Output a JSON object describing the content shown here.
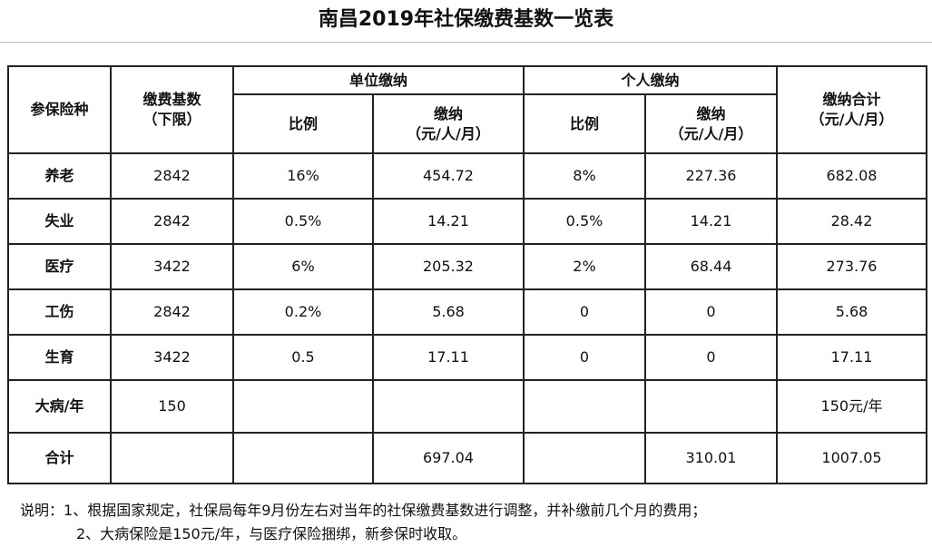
{
  "title": "南昌2019年社保缴费基数一览表",
  "table": {
    "header": {
      "row1": [
        [
          "参保险种"
        ],
        [
          "缴费基数",
          "（下限）"
        ],
        [
          "单位缴纳"
        ],
        [
          "个人缴纳"
        ],
        [
          "缴纳合计",
          "（元/人/月）"
        ]
      ],
      "row2": [
        [
          "比例"
        ],
        [
          "缴纳",
          "（元/人/月）"
        ],
        [
          "比例"
        ],
        [
          "缴纳",
          "（元/人/月）"
        ]
      ]
    },
    "rows": [
      [
        "养老",
        "2842",
        "16%",
        "454.72",
        "8%",
        "227.36",
        "682.08"
      ],
      [
        "失业",
        "2842",
        "0.5%",
        "14.21",
        "0.5%",
        "14.21",
        "28.42"
      ],
      [
        "医疗",
        "3422",
        "6%",
        "205.32",
        "2%",
        "68.44",
        "273.76"
      ],
      [
        "工伤",
        "2842",
        "0.2%",
        "5.68",
        "0",
        "0",
        "5.68"
      ],
      [
        "生育",
        "3422",
        "0.5",
        "17.11",
        "0",
        "0",
        "17.11"
      ],
      [
        "大病/年",
        "150",
        null,
        null,
        null,
        null,
        "150元/年"
      ],
      [
        "合计",
        null,
        null,
        "697.04",
        null,
        "310.01",
        "1007.05"
      ]
    ]
  },
  "notes": {
    "label": "说明：",
    "items": [
      "1、根据国家规定，社保局每年9月份左右对当年的社保缴费基数进行调整，并补缴前几个月的费用；",
      "2、大病保险是150元/年，与医疗保险捆绑，新参保时收取。"
    ]
  }
}
